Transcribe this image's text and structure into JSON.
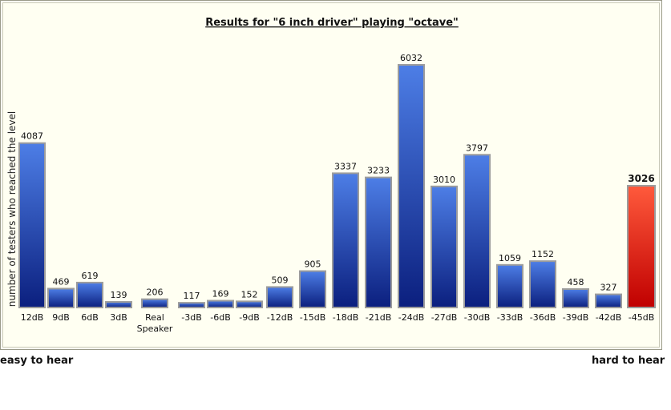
{
  "chart_data": {
    "type": "bar",
    "title": "Results for \"6 inch driver\" playing \"octave\"",
    "ylabel": "number of testers who reached the level",
    "xlabel": "",
    "categories": [
      "12dB",
      "9dB",
      "6dB",
      "3dB",
      "Real Speaker",
      "-3dB",
      "-6dB",
      "-9dB",
      "-12dB",
      "-15dB",
      "-18dB",
      "-21dB",
      "-24dB",
      "-27dB",
      "-30dB",
      "-33dB",
      "-36dB",
      "-39dB",
      "-42dB",
      "-45dB"
    ],
    "values": [
      4087,
      469,
      619,
      139,
      206,
      117,
      169,
      152,
      509,
      905,
      3337,
      3233,
      6032,
      3010,
      3797,
      1059,
      1152,
      458,
      327,
      3026
    ],
    "highlight_index": 19,
    "ylim": [
      0,
      6032
    ],
    "grid": false,
    "legend": "none"
  },
  "colors": {
    "bar_top": "#4d7ee6",
    "bar_bottom": "#0b1f7e",
    "highlight_top": "#ff5a3c",
    "highlight_bottom": "#c00000",
    "background": "#fffff2"
  },
  "footer": {
    "left_label": "easy to hear",
    "right_label": "hard to hear"
  }
}
